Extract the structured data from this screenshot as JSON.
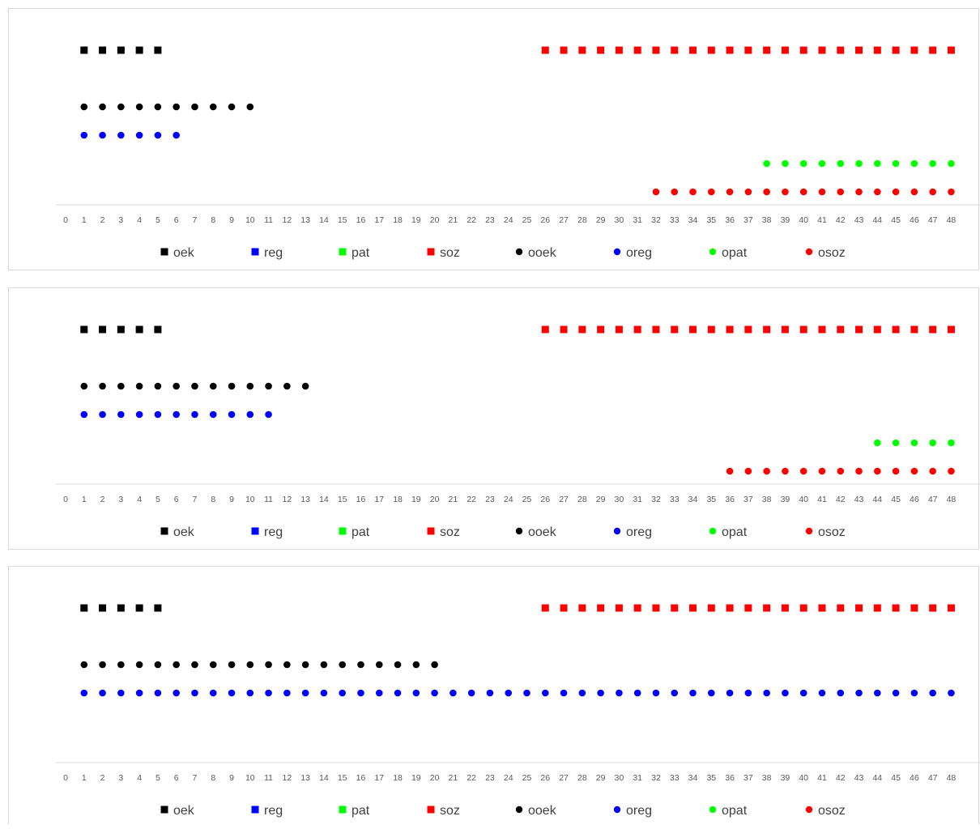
{
  "chart_data": [
    {
      "type": "scatter",
      "x_ticks": [
        0,
        1,
        2,
        3,
        4,
        5,
        6,
        7,
        8,
        9,
        10,
        11,
        12,
        13,
        14,
        15,
        16,
        17,
        18,
        19,
        20,
        21,
        22,
        23,
        24,
        25,
        26,
        27,
        28,
        29,
        30,
        31,
        32,
        33,
        34,
        35,
        36,
        37,
        38,
        39,
        40,
        41,
        42,
        43,
        44,
        45,
        46,
        47,
        48
      ],
      "xlim": [
        0,
        48
      ],
      "grid": false,
      "legend_position": "bottom",
      "series": [
        {
          "name": "oek",
          "marker": "square",
          "color": "#000000",
          "row": 1,
          "x_range": [
            1,
            5
          ]
        },
        {
          "name": "reg",
          "marker": "square",
          "color": "#0000ff",
          "row": 2,
          "x_range": null
        },
        {
          "name": "pat",
          "marker": "square",
          "color": "#00ff00",
          "row": 3,
          "x_range": null
        },
        {
          "name": "soz",
          "marker": "square",
          "color": "#ff0000",
          "row": 1,
          "x_range": [
            26,
            48
          ]
        },
        {
          "name": "ooek",
          "marker": "circle",
          "color": "#000000",
          "row": 3,
          "x_range": [
            1,
            10
          ]
        },
        {
          "name": "oreg",
          "marker": "circle",
          "color": "#0000ff",
          "row": 4,
          "x_range": [
            1,
            6
          ]
        },
        {
          "name": "opat",
          "marker": "circle",
          "color": "#00ff00",
          "row": 5,
          "x_range": [
            38,
            48
          ]
        },
        {
          "name": "osoz",
          "marker": "circle",
          "color": "#ff0000",
          "row": 6,
          "x_range": [
            32,
            48
          ]
        }
      ]
    },
    {
      "type": "scatter",
      "x_ticks": [
        0,
        1,
        2,
        3,
        4,
        5,
        6,
        7,
        8,
        9,
        10,
        11,
        12,
        13,
        14,
        15,
        16,
        17,
        18,
        19,
        20,
        21,
        22,
        23,
        24,
        25,
        26,
        27,
        28,
        29,
        30,
        31,
        32,
        33,
        34,
        35,
        36,
        37,
        38,
        39,
        40,
        41,
        42,
        43,
        44,
        45,
        46,
        47,
        48
      ],
      "xlim": [
        0,
        48
      ],
      "grid": false,
      "legend_position": "bottom",
      "series": [
        {
          "name": "oek",
          "marker": "square",
          "color": "#000000",
          "row": 1,
          "x_range": [
            1,
            5
          ]
        },
        {
          "name": "reg",
          "marker": "square",
          "color": "#0000ff",
          "row": 2,
          "x_range": null
        },
        {
          "name": "pat",
          "marker": "square",
          "color": "#00ff00",
          "row": 3,
          "x_range": null
        },
        {
          "name": "soz",
          "marker": "square",
          "color": "#ff0000",
          "row": 1,
          "x_range": [
            26,
            48
          ]
        },
        {
          "name": "ooek",
          "marker": "circle",
          "color": "#000000",
          "row": 3,
          "x_range": [
            1,
            13
          ]
        },
        {
          "name": "oreg",
          "marker": "circle",
          "color": "#0000ff",
          "row": 4,
          "x_range": [
            1,
            11
          ]
        },
        {
          "name": "opat",
          "marker": "circle",
          "color": "#00ff00",
          "row": 5,
          "x_range": [
            44,
            48
          ]
        },
        {
          "name": "osoz",
          "marker": "circle",
          "color": "#ff0000",
          "row": 6,
          "x_range": [
            36,
            48
          ]
        }
      ]
    },
    {
      "type": "scatter",
      "x_ticks": [
        0,
        1,
        2,
        3,
        4,
        5,
        6,
        7,
        8,
        9,
        10,
        11,
        12,
        13,
        14,
        15,
        16,
        17,
        18,
        19,
        20,
        21,
        22,
        23,
        24,
        25,
        26,
        27,
        28,
        29,
        30,
        31,
        32,
        33,
        34,
        35,
        36,
        37,
        38,
        39,
        40,
        41,
        42,
        43,
        44,
        45,
        46,
        47,
        48
      ],
      "xlim": [
        0,
        48
      ],
      "grid": false,
      "legend_position": "bottom",
      "series": [
        {
          "name": "oek",
          "marker": "square",
          "color": "#000000",
          "row": 1,
          "x_range": [
            1,
            5
          ]
        },
        {
          "name": "reg",
          "marker": "square",
          "color": "#0000ff",
          "row": 2,
          "x_range": null
        },
        {
          "name": "pat",
          "marker": "square",
          "color": "#00ff00",
          "row": 3,
          "x_range": null
        },
        {
          "name": "soz",
          "marker": "square",
          "color": "#ff0000",
          "row": 1,
          "x_range": [
            26,
            48
          ]
        },
        {
          "name": "ooek",
          "marker": "circle",
          "color": "#000000",
          "row": 3,
          "x_range": [
            1,
            20
          ]
        },
        {
          "name": "oreg",
          "marker": "circle",
          "color": "#0000ff",
          "row": 4,
          "x_range": [
            1,
            48
          ]
        },
        {
          "name": "opat",
          "marker": "circle",
          "color": "#00ff00",
          "row": 5,
          "x_range": null
        },
        {
          "name": "osoz",
          "marker": "circle",
          "color": "#ff0000",
          "row": 6,
          "x_range": null
        }
      ]
    }
  ]
}
